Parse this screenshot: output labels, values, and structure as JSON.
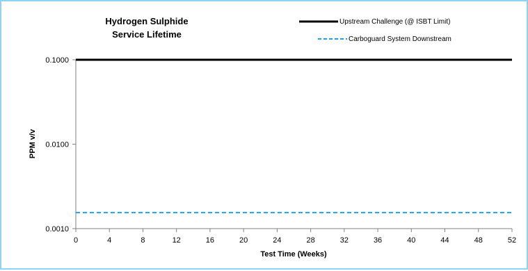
{
  "chart_data": {
    "type": "line",
    "title_lines": [
      "Hydrogen Sulphide",
      "Service Lifetime"
    ],
    "xlabel": "Test Time (Weeks)",
    "ylabel": "PPM v/v",
    "xlim": [
      0,
      52
    ],
    "x_ticks": [
      0,
      4,
      8,
      12,
      16,
      20,
      24,
      28,
      32,
      36,
      40,
      44,
      48,
      52
    ],
    "ylim": [
      0.001,
      0.1
    ],
    "y_scale": "log",
    "y_ticks": [
      0.1,
      0.01,
      0.001
    ],
    "y_tick_labels": [
      "0.1000",
      "0.0100",
      "0.0010"
    ],
    "grid": false,
    "legend_position": "top-right",
    "series": [
      {
        "name": "Upstream Challenge (@ ISBT Limit)",
        "x": [
          0,
          52
        ],
        "y": [
          0.1,
          0.1
        ],
        "color": "#000000",
        "style": "solid"
      },
      {
        "name": "Carboguard System Downstream",
        "x": [
          0,
          52
        ],
        "y": [
          0.00155,
          0.00155
        ],
        "color": "#1aa3e8",
        "style": "dashed"
      }
    ]
  }
}
